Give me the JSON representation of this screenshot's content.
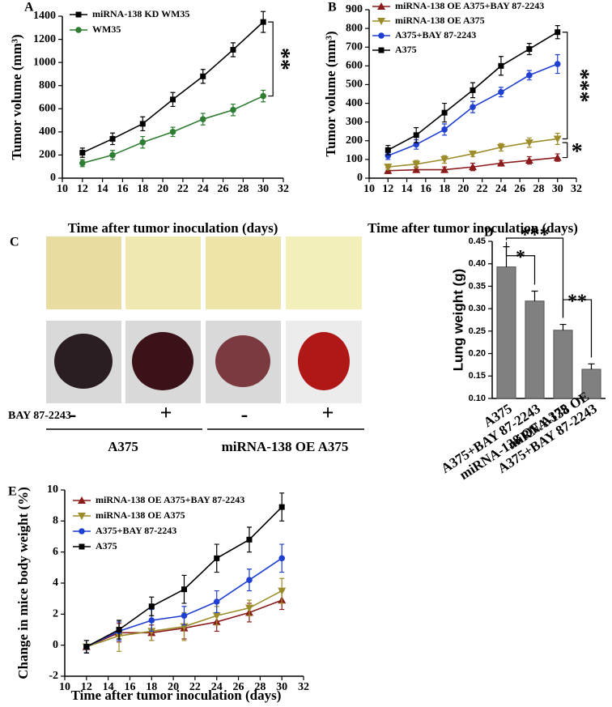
{
  "chart_data": [
    {
      "type": "line",
      "panel": "A",
      "ylabel": "Tumor volume (mm³)",
      "xlabel": "Time after tumor inoculation (days)",
      "x": [
        12,
        15,
        18,
        21,
        24,
        27,
        30
      ],
      "xlim": [
        10,
        32
      ],
      "xticks": [
        10,
        12,
        14,
        16,
        18,
        20,
        22,
        24,
        26,
        28,
        30,
        32
      ],
      "ylim": [
        0,
        1400
      ],
      "yticks": [
        0,
        200,
        400,
        600,
        800,
        1000,
        1200,
        1400
      ],
      "series": [
        {
          "name": "miRNA-138 KD WM35",
          "color": "#000000",
          "marker": "square",
          "values": [
            220,
            340,
            470,
            680,
            880,
            1110,
            1350
          ],
          "errors": [
            40,
            50,
            60,
            60,
            60,
            60,
            90
          ]
        },
        {
          "name": "WM35",
          "color": "#2e7d32",
          "marker": "circle",
          "values": [
            130,
            200,
            310,
            400,
            510,
            590,
            710
          ],
          "errors": [
            30,
            40,
            50,
            40,
            50,
            50,
            50
          ]
        }
      ],
      "annotations": [
        "**"
      ]
    },
    {
      "type": "line",
      "panel": "B",
      "ylabel": "Tumor volume (mm³)",
      "xlabel": "Time after tumor inoculation (days)",
      "x": [
        12,
        15,
        18,
        21,
        24,
        27,
        30
      ],
      "xlim": [
        10,
        32
      ],
      "xticks": [
        10,
        12,
        14,
        16,
        18,
        20,
        22,
        24,
        26,
        28,
        30,
        32
      ],
      "ylim": [
        0,
        900
      ],
      "yticks": [
        0,
        100,
        200,
        300,
        400,
        500,
        600,
        700,
        800,
        900
      ],
      "series": [
        {
          "name": "miRNA-138 OE A375+BAY 87-2243",
          "color": "#8b1a1a",
          "marker": "triangle-up",
          "values": [
            40,
            45,
            45,
            60,
            80,
            95,
            110
          ],
          "errors": [
            15,
            15,
            15,
            20,
            15,
            20,
            20
          ]
        },
        {
          "name": "miRNA-138 OE A375",
          "color": "#9c8c2a",
          "marker": "triangle-down",
          "values": [
            60,
            75,
            100,
            130,
            165,
            190,
            210
          ],
          "errors": [
            15,
            20,
            20,
            15,
            20,
            25,
            30
          ]
        },
        {
          "name": "A375+BAY 87-2243",
          "color": "#1f3fd1",
          "marker": "circle",
          "values": [
            120,
            180,
            260,
            380,
            460,
            550,
            610
          ],
          "errors": [
            20,
            25,
            30,
            30,
            25,
            25,
            50
          ]
        },
        {
          "name": "A375",
          "color": "#000000",
          "marker": "square",
          "values": [
            150,
            230,
            350,
            470,
            600,
            690,
            780
          ],
          "errors": [
            25,
            40,
            50,
            40,
            50,
            30,
            35
          ]
        }
      ],
      "annotations": [
        "***",
        "*"
      ]
    },
    {
      "type": "bar",
      "panel": "D",
      "ylabel": "Lung weight (g)",
      "color": "#808080",
      "categories": [
        "A375",
        "A375+BAY 87-2243",
        "miRNA-138 OE A375",
        "miRNA-138 OE\nA375+BAY 87-2243"
      ],
      "values": [
        0.393,
        0.317,
        0.252,
        0.165
      ],
      "errors": [
        0.045,
        0.022,
        0.013,
        0.012
      ],
      "ylim": [
        0.1,
        0.45
      ],
      "yticks": [
        {
          "value": 0.1,
          "label": "0.10"
        },
        {
          "value": 0.15,
          "label": "0.15"
        },
        {
          "value": 0.2,
          "label": "0.20"
        },
        {
          "value": 0.25,
          "label": "0.25"
        },
        {
          "value": 0.3,
          "label": "0.30"
        },
        {
          "value": 0.35,
          "label": "0.35"
        },
        {
          "value": 0.4,
          "label": "0.40"
        },
        {
          "value": 0.45,
          "label": "0.45"
        }
      ],
      "annotations": [
        "***",
        "*",
        "**"
      ]
    },
    {
      "type": "line",
      "panel": "E",
      "ylabel": "Change in mice body weight (%)",
      "xlabel": "Time after tumor inoculation (days)",
      "x": [
        12,
        15,
        18,
        21,
        24,
        27,
        30
      ],
      "xlim": [
        10,
        32
      ],
      "xticks": [
        10,
        12,
        14,
        16,
        18,
        20,
        22,
        24,
        26,
        28,
        30,
        32
      ],
      "ylim": [
        -2,
        10
      ],
      "yticks": [
        -2,
        0,
        2,
        4,
        6,
        8,
        10
      ],
      "series": [
        {
          "name": "miRNA-138 OE A375+BAY 87-2243",
          "color": "#8b1a1a",
          "marker": "triangle-up",
          "values": [
            -0.1,
            0.8,
            0.8,
            1.1,
            1.5,
            2.1,
            2.9
          ],
          "errors": [
            0.4,
            0.6,
            0.5,
            0.7,
            0.6,
            0.6,
            0.6
          ]
        },
        {
          "name": "miRNA-138 OE A375",
          "color": "#9c8c2a",
          "marker": "triangle-down",
          "values": [
            -0.1,
            0.6,
            0.9,
            1.2,
            1.9,
            2.4,
            3.5
          ],
          "errors": [
            0.4,
            1.0,
            0.6,
            0.9,
            0.6,
            0.5,
            0.8
          ]
        },
        {
          "name": "A375+BAY 87-2243",
          "color": "#1f3fd1",
          "marker": "circle",
          "values": [
            -0.1,
            0.9,
            1.6,
            1.9,
            2.8,
            4.2,
            5.6
          ],
          "errors": [
            0.4,
            0.6,
            0.7,
            0.6,
            0.7,
            0.7,
            0.9
          ]
        },
        {
          "name": "A375",
          "color": "#000000",
          "marker": "square",
          "values": [
            -0.1,
            1.0,
            2.5,
            3.6,
            5.6,
            6.8,
            8.9
          ],
          "errors": [
            0.4,
            0.6,
            0.6,
            0.9,
            0.9,
            0.8,
            0.9
          ]
        }
      ]
    }
  ],
  "panel_c": {
    "panel": "C",
    "treatment": "BAY 87-2243",
    "signs": [
      "-",
      "+",
      "-",
      "+"
    ],
    "groups": [
      "A375",
      "miRNA-138 OE A375"
    ]
  }
}
